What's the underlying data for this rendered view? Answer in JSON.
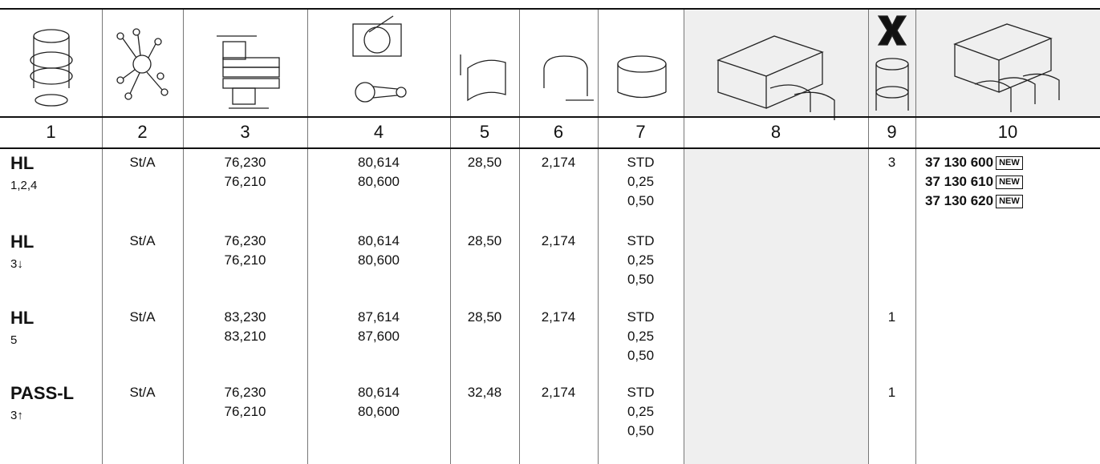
{
  "columns": [
    "1",
    "2",
    "3",
    "4",
    "5",
    "6",
    "7",
    "8",
    "9",
    "10"
  ],
  "rows": [
    {
      "model": "HL",
      "sub": "1,2,4",
      "material": "St/A",
      "d3": [
        "76,230",
        "76,210"
      ],
      "d4": [
        "80,614",
        "80,600"
      ],
      "c5": "28,50",
      "c6": "2,174",
      "sizes": [
        "STD",
        "0,25",
        "0,50"
      ],
      "qty": "3",
      "parts": [
        {
          "number": "37 130 600",
          "badge": "NEW"
        },
        {
          "number": "37 130 610",
          "badge": "NEW"
        },
        {
          "number": "37 130 620",
          "badge": "NEW"
        }
      ]
    },
    {
      "model": "HL",
      "sub": "3↓",
      "material": "St/A",
      "d3": [
        "76,230",
        "76,210"
      ],
      "d4": [
        "80,614",
        "80,600"
      ],
      "c5": "28,50",
      "c6": "2,174",
      "sizes": [
        "STD",
        "0,25",
        "0,50"
      ]
    },
    {
      "model": "HL",
      "sub": "5",
      "material": "St/A",
      "d3": [
        "83,230",
        "83,210"
      ],
      "d4": [
        "87,614",
        "87,600"
      ],
      "c5": "28,50",
      "c6": "2,174",
      "sizes": [
        "STD",
        "0,25",
        "0,50"
      ],
      "qty": "1"
    },
    {
      "model": "PASS-L",
      "sub": "3↑",
      "material": "St/A",
      "d3": [
        "76,230",
        "76,210"
      ],
      "d4": [
        "80,614",
        "80,600"
      ],
      "c5": "32,48",
      "c6": "2,174",
      "sizes": [
        "STD",
        "0,25",
        "0,50"
      ],
      "qty": "1"
    }
  ]
}
